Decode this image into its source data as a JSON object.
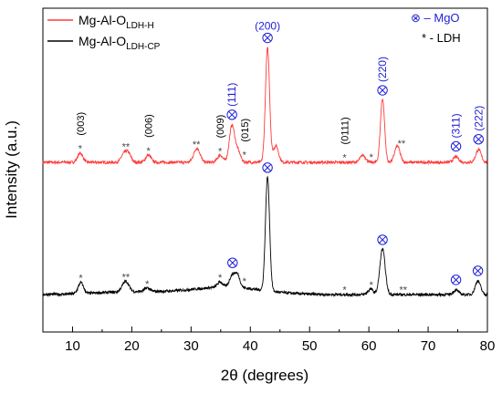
{
  "chart_data": {
    "type": "line",
    "xlabel": "2θ (degrees)",
    "ylabel": "Intensity (a.u.)",
    "xlim": [
      5,
      80
    ],
    "xticks": [
      "10",
      "20",
      "30",
      "40",
      "50",
      "60",
      "70",
      "80"
    ],
    "y_ticks_shown": false,
    "grid": false,
    "legend_placement": "top-left",
    "series": [
      {
        "name_main": "Mg-Al-O",
        "name_sub": "LDH-H",
        "color": "#ff3b3b",
        "baseline": 178,
        "peaks": [
          [
            11.3,
            10
          ],
          [
            18.6,
            8
          ],
          [
            19.4,
            10
          ],
          [
            22.8,
            8
          ],
          [
            30.7,
            8
          ],
          [
            31.2,
            10
          ],
          [
            34.9,
            8
          ],
          [
            36.9,
            40
          ],
          [
            37.9,
            12
          ],
          [
            42.9,
            125
          ],
          [
            44.3,
            18
          ],
          [
            59.0,
            8
          ],
          [
            62.3,
            70
          ],
          [
            64.8,
            18
          ],
          [
            74.7,
            6
          ],
          [
            78.5,
            14
          ]
        ]
      },
      {
        "name_main": "Mg-Al-O",
        "name_sub": "LDH-CP",
        "color": "#000000",
        "baseline": 323,
        "peaks": [
          [
            11.4,
            12
          ],
          [
            18.6,
            6
          ],
          [
            19.2,
            8
          ],
          [
            22.6,
            4
          ],
          [
            34.9,
            6
          ],
          [
            36.9,
            12
          ],
          [
            37.8,
            14
          ],
          [
            42.9,
            125
          ],
          [
            60.3,
            6
          ],
          [
            62.3,
            50
          ],
          [
            74.7,
            5
          ],
          [
            78.4,
            15
          ]
        ]
      }
    ],
    "annotations": {
      "mgo": [
        {
          "label": "(200)",
          "x": 42.9,
          "series": 0
        },
        {
          "label": "(111)",
          "x": 36.9,
          "series": 0
        },
        {
          "label": "(220)",
          "x": 62.3,
          "series": 0
        },
        {
          "label": "(311)",
          "x": 74.7,
          "series": 0
        },
        {
          "label": "(222)",
          "x": 78.5,
          "series": 0
        },
        {
          "label": "",
          "x": 42.9,
          "series": 1
        },
        {
          "label": "",
          "x": 37.0,
          "series": 1
        },
        {
          "label": "",
          "x": 62.3,
          "series": 1
        },
        {
          "label": "",
          "x": 74.7,
          "series": 1
        },
        {
          "label": "",
          "x": 78.4,
          "series": 1
        }
      ],
      "ldh": [
        {
          "label": "(003)",
          "x": 11.3,
          "series": 0
        },
        {
          "label": "(006)",
          "x": 22.8,
          "series": 0
        },
        {
          "label": "(009)",
          "x": 34.9,
          "series": 0
        },
        {
          "label": "(015)",
          "x": 39.0,
          "series": 0
        },
        {
          "label": "(0111)",
          "x": 55.9,
          "series": 0
        }
      ],
      "stars": [
        {
          "text": "*",
          "x": 11.3,
          "series": 0
        },
        {
          "text": "**",
          "x": 19.0,
          "series": 0
        },
        {
          "text": "*",
          "x": 22.8,
          "series": 0
        },
        {
          "text": "**",
          "x": 30.9,
          "series": 0
        },
        {
          "text": "*",
          "x": 34.9,
          "series": 0
        },
        {
          "text": "*",
          "x": 39.0,
          "series": 0
        },
        {
          "text": "*",
          "x": 55.9,
          "series": 0
        },
        {
          "text": "*",
          "x": 60.4,
          "series": 0
        },
        {
          "text": "**",
          "x": 65.5,
          "series": 0
        },
        {
          "text": "*",
          "x": 11.4,
          "series": 1
        },
        {
          "text": "**",
          "x": 19.0,
          "series": 1
        },
        {
          "text": "*",
          "x": 22.6,
          "series": 1
        },
        {
          "text": "*",
          "x": 34.9,
          "series": 1
        },
        {
          "text": "*",
          "x": 39.0,
          "series": 1
        },
        {
          "text": "*",
          "x": 55.9,
          "series": 1
        },
        {
          "text": "*",
          "x": 60.4,
          "series": 1
        },
        {
          "text": "**",
          "x": 65.8,
          "series": 1
        }
      ]
    },
    "key": [
      {
        "symbol": "⊗",
        "text": " – MgO",
        "color": "#1f1fd6"
      },
      {
        "symbol": "*",
        "text": " - LDH",
        "color": "#000000"
      }
    ]
  }
}
